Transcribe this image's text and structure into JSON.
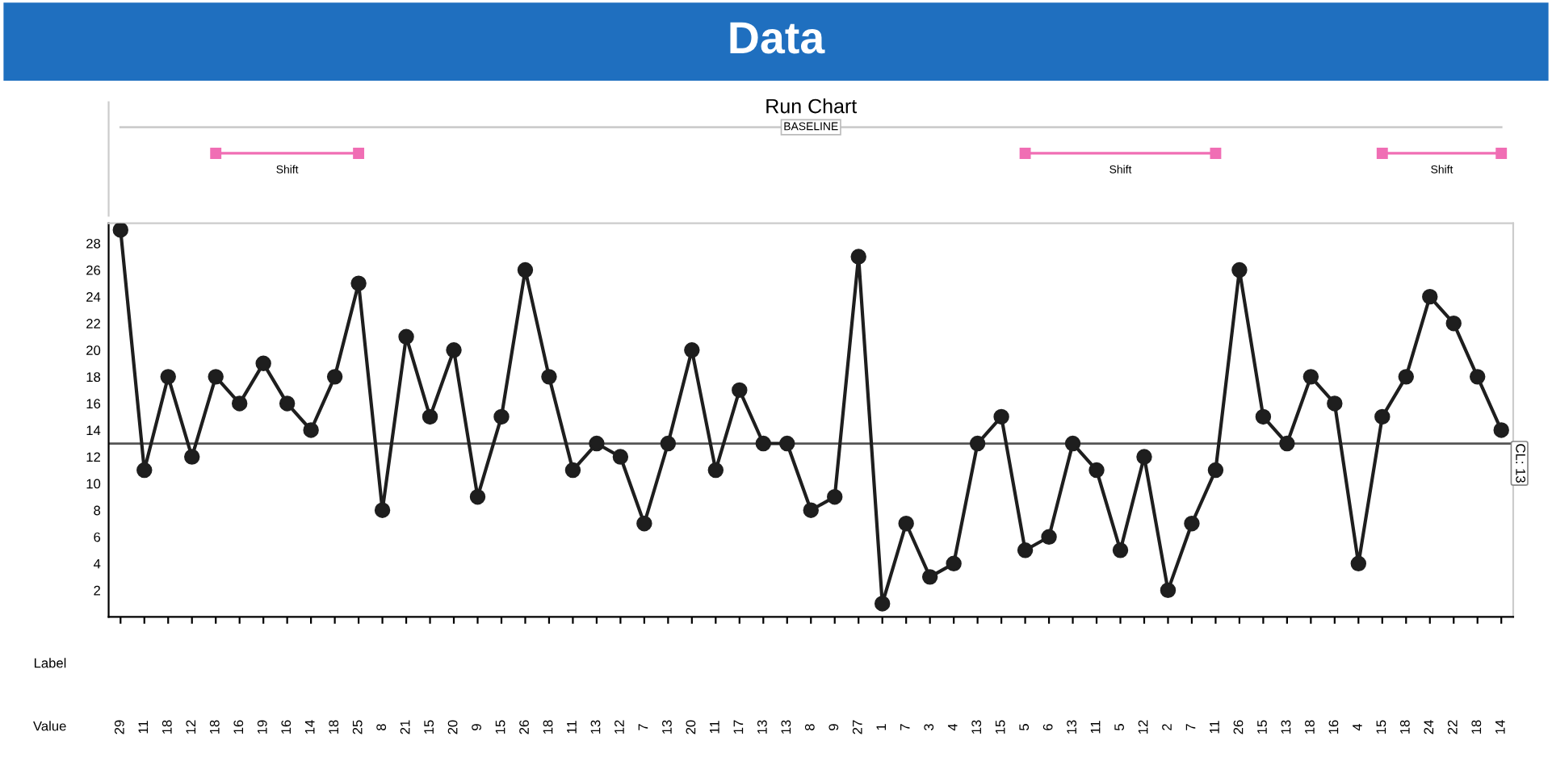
{
  "chart_data": {
    "type": "line",
    "title": "Data",
    "subtitle": "Run Chart",
    "categories": [
      null,
      null,
      null,
      null,
      null,
      null,
      null,
      null,
      null,
      null,
      null,
      null,
      null,
      null,
      null,
      null,
      null,
      null,
      null,
      null,
      null,
      null,
      null,
      null,
      null,
      null,
      null,
      null,
      null,
      null,
      null,
      null,
      null,
      null,
      null,
      null,
      null,
      null,
      null,
      null,
      null,
      null,
      null,
      null,
      null,
      null,
      null,
      null,
      null,
      null,
      null,
      null,
      null,
      null,
      null,
      null,
      null,
      null,
      null
    ],
    "series": [
      {
        "color": "#1e1e1e",
        "values": [
          29,
          11,
          18,
          12,
          18,
          16,
          19,
          16,
          14,
          18,
          25,
          8,
          21,
          15,
          20,
          9,
          15,
          26,
          18,
          11,
          13,
          12,
          7,
          13,
          20,
          11,
          17,
          13,
          13,
          8,
          9,
          27,
          1,
          7,
          3,
          4,
          13,
          15,
          5,
          6,
          13,
          11,
          5,
          12,
          2,
          7,
          11,
          26,
          15,
          13,
          18,
          16,
          4,
          15,
          18,
          24,
          22,
          18,
          14
        ]
      }
    ],
    "ylim": [
      0,
      29.5
    ],
    "yticks": [
      2,
      4,
      6,
      8,
      10,
      12,
      14,
      16,
      18,
      20,
      22,
      24,
      26,
      28
    ],
    "ref_lines": [
      {
        "axis": "y",
        "value": 13,
        "label": "CL: 13",
        "color": "#555555"
      }
    ],
    "annotations": [
      "BASELINE",
      "Label",
      "Value",
      "Shift",
      "Shift",
      "Shift"
    ],
    "marker": "circle",
    "line_style": "solid",
    "data_labels": true,
    "grid": false,
    "legend": false
  }
}
